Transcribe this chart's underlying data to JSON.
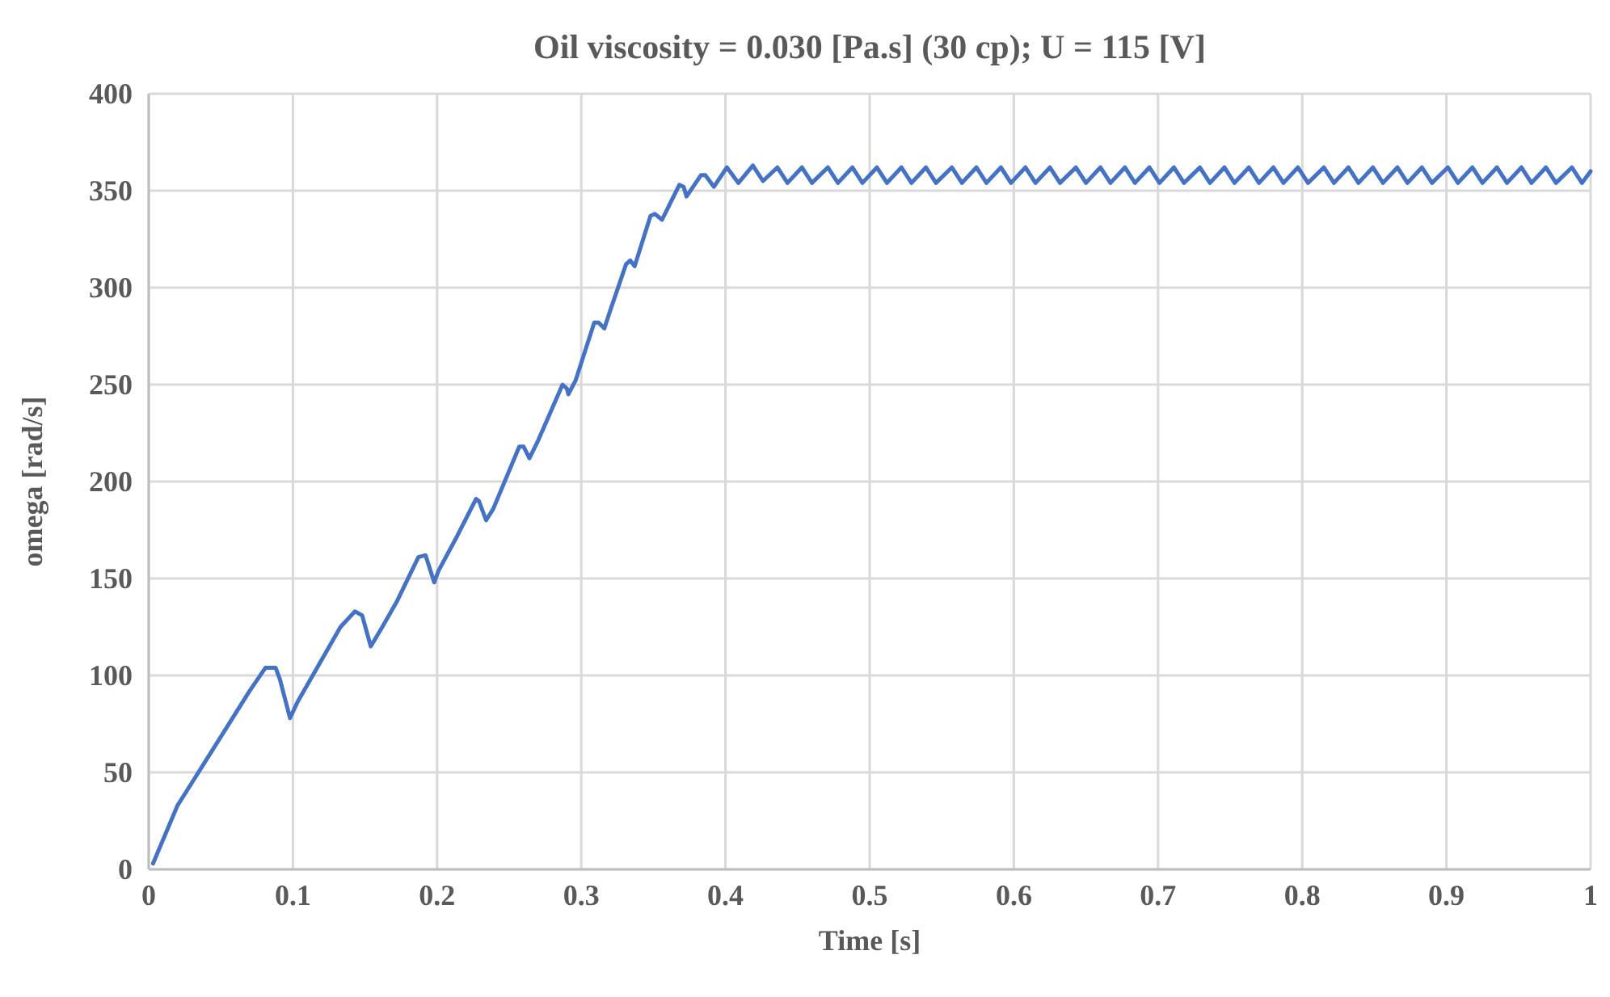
{
  "chart_data": {
    "type": "line",
    "title": "Oil viscosity = 0.030 [Pa.s] (30 cp); U = 115 [V]",
    "xlabel": "Time [s]",
    "ylabel": "omega [rad/s]",
    "xlim": [
      0,
      1
    ],
    "xticks": [
      0,
      0.1,
      0.2,
      0.3,
      0.4,
      0.5,
      0.6,
      0.7,
      0.8,
      0.9,
      1
    ],
    "ylim": [
      0,
      400
    ],
    "yticks": [
      0,
      50,
      100,
      150,
      200,
      250,
      300,
      350,
      400
    ],
    "grid": true,
    "marker": "none",
    "line_style": "solid",
    "series": [
      {
        "color": "#4472c4",
        "x": [
          0.003,
          0.02,
          0.026,
          0.07,
          0.081,
          0.088,
          0.091,
          0.098,
          0.103,
          0.133,
          0.143,
          0.148,
          0.154,
          0.162,
          0.172,
          0.187,
          0.192,
          0.198,
          0.201,
          0.214,
          0.227,
          0.229,
          0.234,
          0.239,
          0.257,
          0.26,
          0.264,
          0.27,
          0.287,
          0.29,
          0.291,
          0.296,
          0.309,
          0.312,
          0.316,
          0.32,
          0.331,
          0.334,
          0.337,
          0.348,
          0.351,
          0.356,
          0.362,
          0.368,
          0.371,
          0.373,
          0.383,
          0.386,
          0.392,
          0.401,
          0.409,
          0.419,
          0.426,
          0.436,
          0.443,
          0.453,
          0.46,
          0.471,
          0.478,
          0.488,
          0.495,
          0.505,
          0.512,
          0.522,
          0.529,
          0.539,
          0.546,
          0.557,
          0.564,
          0.574,
          0.581,
          0.591,
          0.598,
          0.608,
          0.615,
          0.625,
          0.632,
          0.643,
          0.65,
          0.66,
          0.667,
          0.677,
          0.684,
          0.694,
          0.701,
          0.711,
          0.718,
          0.729,
          0.736,
          0.746,
          0.753,
          0.763,
          0.77,
          0.78,
          0.787,
          0.797,
          0.804,
          0.815,
          0.822,
          0.832,
          0.839,
          0.849,
          0.856,
          0.866,
          0.873,
          0.883,
          0.89,
          0.901,
          0.908,
          0.918,
          0.925,
          0.935,
          0.942,
          0.952,
          0.959,
          0.969,
          0.976,
          0.987,
          0.994,
          1
        ],
        "values": [
          3,
          33,
          40,
          92,
          104,
          104,
          98,
          78,
          86,
          125,
          133,
          131,
          115,
          125,
          138,
          161,
          162,
          148,
          154,
          172,
          191,
          190,
          180,
          186,
          218,
          218,
          212,
          221,
          250,
          248,
          245,
          252,
          282,
          282,
          279,
          288,
          312,
          314,
          311,
          337,
          338,
          335,
          344,
          353,
          352,
          347,
          358,
          358,
          352,
          362,
          354,
          363,
          355,
          362,
          354,
          362,
          354,
          362,
          354,
          362,
          354,
          362,
          354,
          362,
          354,
          362,
          354,
          362,
          354,
          362,
          354,
          362,
          354,
          362,
          354,
          362,
          354,
          362,
          354,
          362,
          354,
          362,
          354,
          362,
          354,
          362,
          354,
          362,
          354,
          362,
          354,
          362,
          354,
          362,
          354,
          362,
          354,
          362,
          354,
          362,
          354,
          362,
          354,
          362,
          354,
          362,
          354,
          362,
          354,
          362,
          354,
          362,
          354,
          362,
          354,
          362,
          354,
          362,
          354,
          360
        ]
      }
    ]
  }
}
